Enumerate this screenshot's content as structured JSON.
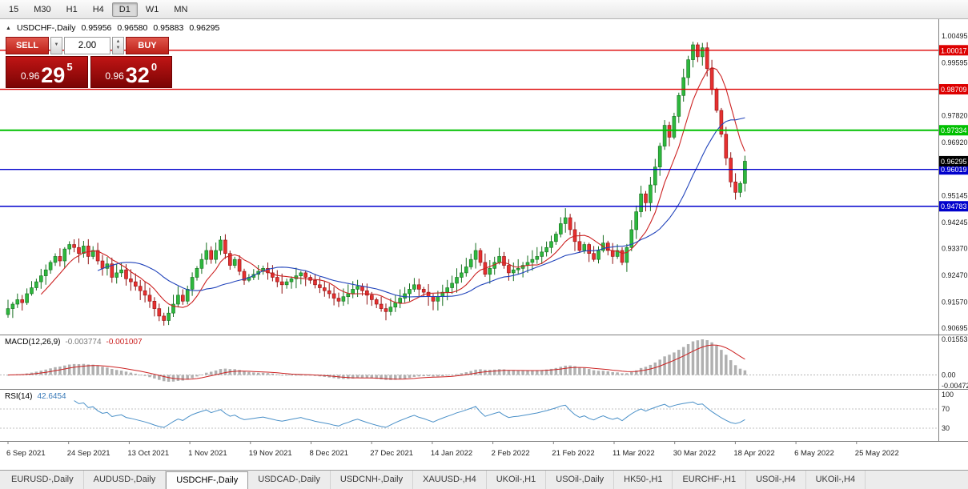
{
  "icons": {
    "collapse": "▲",
    "dropdown": "▼",
    "spin_up": "▲",
    "spin_down": "▼"
  },
  "toolbar": {
    "timeframes": [
      {
        "label": "15",
        "active": false
      },
      {
        "label": "M30",
        "active": false
      },
      {
        "label": "H1",
        "active": false
      },
      {
        "label": "H4",
        "active": false
      },
      {
        "label": "D1",
        "active": true
      },
      {
        "label": "W1",
        "active": false
      },
      {
        "label": "MN",
        "active": false
      }
    ]
  },
  "chart": {
    "title_symbol": "USDCHF-,Daily",
    "ohlc": {
      "open": "0.95956",
      "high": "0.96580",
      "low": "0.95883",
      "close": "0.96295"
    },
    "trade_panel": {
      "sell_label": "SELL",
      "buy_label": "BUY",
      "volume": "2.00",
      "bid": {
        "prefix": "0.96",
        "big": "29",
        "sup": "5"
      },
      "ask": {
        "prefix": "0.96",
        "big": "32",
        "sup": "0"
      }
    }
  },
  "chart_data": {
    "type": "candlestick",
    "symbol": "USDCHF",
    "period": "Daily",
    "ohlc_display": {
      "open": 0.95956,
      "high": 0.9658,
      "low": 0.95883,
      "close": 0.96295
    },
    "bid": 0.96295,
    "ask": 0.9632,
    "current_price": 0.96295,
    "price_axis": {
      "min": 0.90695,
      "max": 1.00495,
      "labels": [
        1.00495,
        0.99595,
        0.9782,
        0.9692,
        0.95145,
        0.94245,
        0.9337,
        0.9247,
        0.9157,
        0.90695
      ]
    },
    "hlines": [
      {
        "value": 1.00017,
        "color": "#dd0000",
        "width": 1.4
      },
      {
        "value": 0.98709,
        "color": "#dd0000",
        "width": 1.4
      },
      {
        "value": 0.97334,
        "color": "#00c000",
        "width": 2
      },
      {
        "value": 0.96019,
        "color": "#0000cc",
        "width": 1.4
      },
      {
        "value": 0.94783,
        "color": "#0000cc",
        "width": 1.4
      }
    ],
    "closes": [
      0.9135,
      0.915,
      0.9165,
      0.9155,
      0.9185,
      0.9205,
      0.9225,
      0.9245,
      0.9265,
      0.929,
      0.931,
      0.9295,
      0.9335,
      0.935,
      0.934,
      0.932,
      0.9345,
      0.931,
      0.933,
      0.9295,
      0.927,
      0.9285,
      0.924,
      0.9255,
      0.9265,
      0.9235,
      0.9225,
      0.921,
      0.9195,
      0.918,
      0.916,
      0.9135,
      0.911,
      0.9095,
      0.912,
      0.915,
      0.918,
      0.916,
      0.92,
      0.924,
      0.927,
      0.93,
      0.933,
      0.93,
      0.933,
      0.9365,
      0.932,
      0.928,
      0.93,
      0.926,
      0.923,
      0.924,
      0.925,
      0.926,
      0.927,
      0.9255,
      0.924,
      0.9225,
      0.9215,
      0.9225,
      0.9235,
      0.9245,
      0.9255,
      0.924,
      0.923,
      0.9215,
      0.9205,
      0.9195,
      0.9185,
      0.917,
      0.916,
      0.9175,
      0.9185,
      0.92,
      0.921,
      0.9195,
      0.918,
      0.9165,
      0.915,
      0.9135,
      0.9125,
      0.914,
      0.9155,
      0.917,
      0.9185,
      0.92,
      0.9215,
      0.92,
      0.919,
      0.9175,
      0.916,
      0.9175,
      0.919,
      0.9205,
      0.922,
      0.924,
      0.9255,
      0.9275,
      0.93,
      0.933,
      0.929,
      0.925,
      0.927,
      0.929,
      0.931,
      0.928,
      0.9255,
      0.9265,
      0.927,
      0.928,
      0.929,
      0.93,
      0.931,
      0.9325,
      0.934,
      0.936,
      0.9385,
      0.942,
      0.944,
      0.94,
      0.936,
      0.933,
      0.935,
      0.932,
      0.93,
      0.933,
      0.9355,
      0.933,
      0.931,
      0.933,
      0.929,
      0.934,
      0.94,
      0.946,
      0.952,
      0.949,
      0.955,
      0.961,
      0.968,
      0.975,
      0.971,
      0.978,
      0.985,
      0.991,
      0.997,
      1.002,
      0.998,
      1.001,
      0.994,
      0.987,
      0.98,
      0.972,
      0.964,
      0.956,
      0.9525,
      0.9555,
      0.96295
    ],
    "date_axis": [
      "6 Sep 2021",
      "24 Sep 2021",
      "13 Oct 2021",
      "1 Nov 2021",
      "19 Nov 2021",
      "8 Dec 2021",
      "27 Dec 2021",
      "14 Jan 2022",
      "2 Feb 2022",
      "21 Feb 2022",
      "11 Mar 2022",
      "30 Mar 2022",
      "18 Apr 2022",
      "6 May 2022",
      "25 May 2022"
    ],
    "indicators": {
      "macd": {
        "name": "MACD(12,26,9)",
        "value_main": "-0.003774",
        "value_signal": "-0.001007",
        "axis": [
          {
            "label": "0.01553",
            "value": 0.01553
          },
          {
            "label": "0.00",
            "value": 0
          },
          {
            "label": "-0.00472",
            "value": -0.00472
          }
        ]
      },
      "rsi": {
        "name": "RSI(14)",
        "value": "42.6454",
        "axis": [
          {
            "label": "100",
            "value": 100
          },
          {
            "label": "70",
            "value": 70
          },
          {
            "label": "30",
            "value": 30
          }
        ],
        "levels": [
          70,
          30
        ]
      }
    },
    "colors": {
      "candle_up": "#2db83d",
      "candle_up_border": "#176e20",
      "candle_down": "#e63030",
      "candle_down_border": "#8f1212",
      "ma_fast": "#cc2222",
      "ma_slow": "#2244bb",
      "macd_hist": "#b0b0b0",
      "macd_signal": "#cc2222",
      "rsi_line": "#4a90c8",
      "current_badge": "#000000"
    }
  },
  "tabs": {
    "active_index": 2,
    "items": [
      "EURUSD-,Daily",
      "AUDUSD-,Daily",
      "USDCHF-,Daily",
      "USDCAD-,Daily",
      "USDCNH-,Daily",
      "XAUUSD-,H4",
      "UKOil-,H1",
      "USOil-,Daily",
      "HK50-,H1",
      "EURCHF-,H1",
      "USOil-,H4",
      "UKOil-,H4"
    ]
  }
}
